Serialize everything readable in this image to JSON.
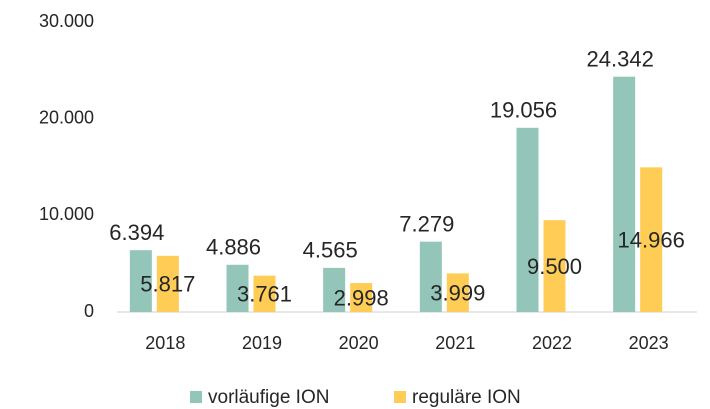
{
  "chart_data": {
    "type": "bar",
    "categories": [
      "2018",
      "2019",
      "2020",
      "2021",
      "2022",
      "2023"
    ],
    "series": [
      {
        "name": "vorläufige ION",
        "color": "#93c5b9",
        "values": [
          6394,
          4886,
          4565,
          7279,
          19056,
          24342
        ],
        "value_labels": [
          "6.394",
          "4.886",
          "4.565",
          "7.279",
          "19.056",
          "24.342"
        ]
      },
      {
        "name": "reguläre ION",
        "color": "#ffcd55",
        "values": [
          5817,
          3761,
          2998,
          3999,
          9500,
          14966
        ],
        "value_labels": [
          "5.817",
          "3.761",
          "2.998",
          "3.999",
          "9.500",
          "14.966"
        ]
      }
    ],
    "ylim": [
      0,
      30000
    ],
    "yticks": [
      0,
      {
        "value": 10000,
        "label": "10.000"
      },
      {
        "value": 20000,
        "label": "20.000"
      },
      {
        "value": 30000,
        "label": "30.000"
      }
    ],
    "grid": false,
    "legend": "bottom"
  }
}
